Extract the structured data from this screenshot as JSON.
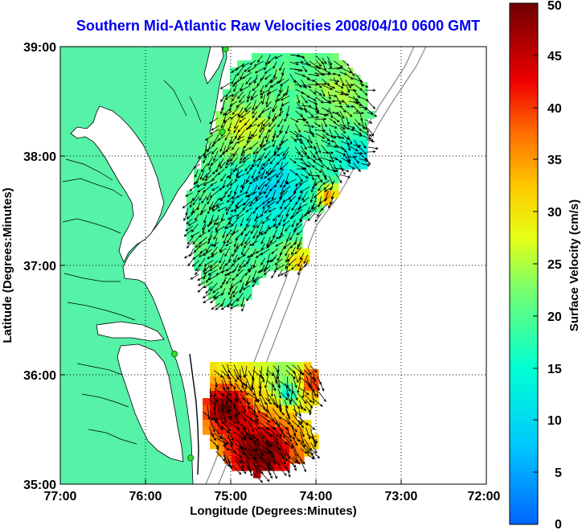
{
  "title": "Southern Mid-Atlantic Raw Velocities 2008/04/10 0600 GMT",
  "x_axis": {
    "label": "Longitude (Degrees:Minutes)",
    "ticks": [
      "77:00",
      "76:00",
      "75:00",
      "74:00",
      "73:00",
      "72:00"
    ]
  },
  "y_axis": {
    "label": "Latitude (Degrees:Minutes)",
    "ticks": [
      "39:00",
      "38:00",
      "37:00",
      "36:00",
      "35:00"
    ]
  },
  "colorbar": {
    "label": "Surface Velocity (cm/s)",
    "ticks": [
      "50",
      "45",
      "40",
      "35",
      "30",
      "25",
      "20",
      "15",
      "10",
      "5",
      "0"
    ],
    "colormap": "jet",
    "range": [
      0,
      50
    ]
  },
  "colors": {
    "land": "#55f2a8",
    "water": "#ffffff",
    "title": "#0000ee",
    "station": "#33dd33"
  },
  "stations": [
    {
      "lon": -75.06,
      "lat": 38.98
    },
    {
      "lon": -75.1,
      "lat": 38.22
    },
    {
      "lon": -75.66,
      "lat": 36.19
    },
    {
      "lon": -75.47,
      "lat": 35.24
    }
  ],
  "velocity_regions": [
    {
      "name": "northern",
      "lon_range": [
        -75.5,
        -73.4
      ],
      "lat_range": [
        36.6,
        38.8
      ],
      "speed_cm_s": [
        12,
        30
      ]
    },
    {
      "name": "southern",
      "lon_range": [
        -75.2,
        -73.9
      ],
      "lat_range": [
        35.1,
        36.4
      ],
      "speed_cm_s": [
        20,
        50
      ]
    }
  ]
}
